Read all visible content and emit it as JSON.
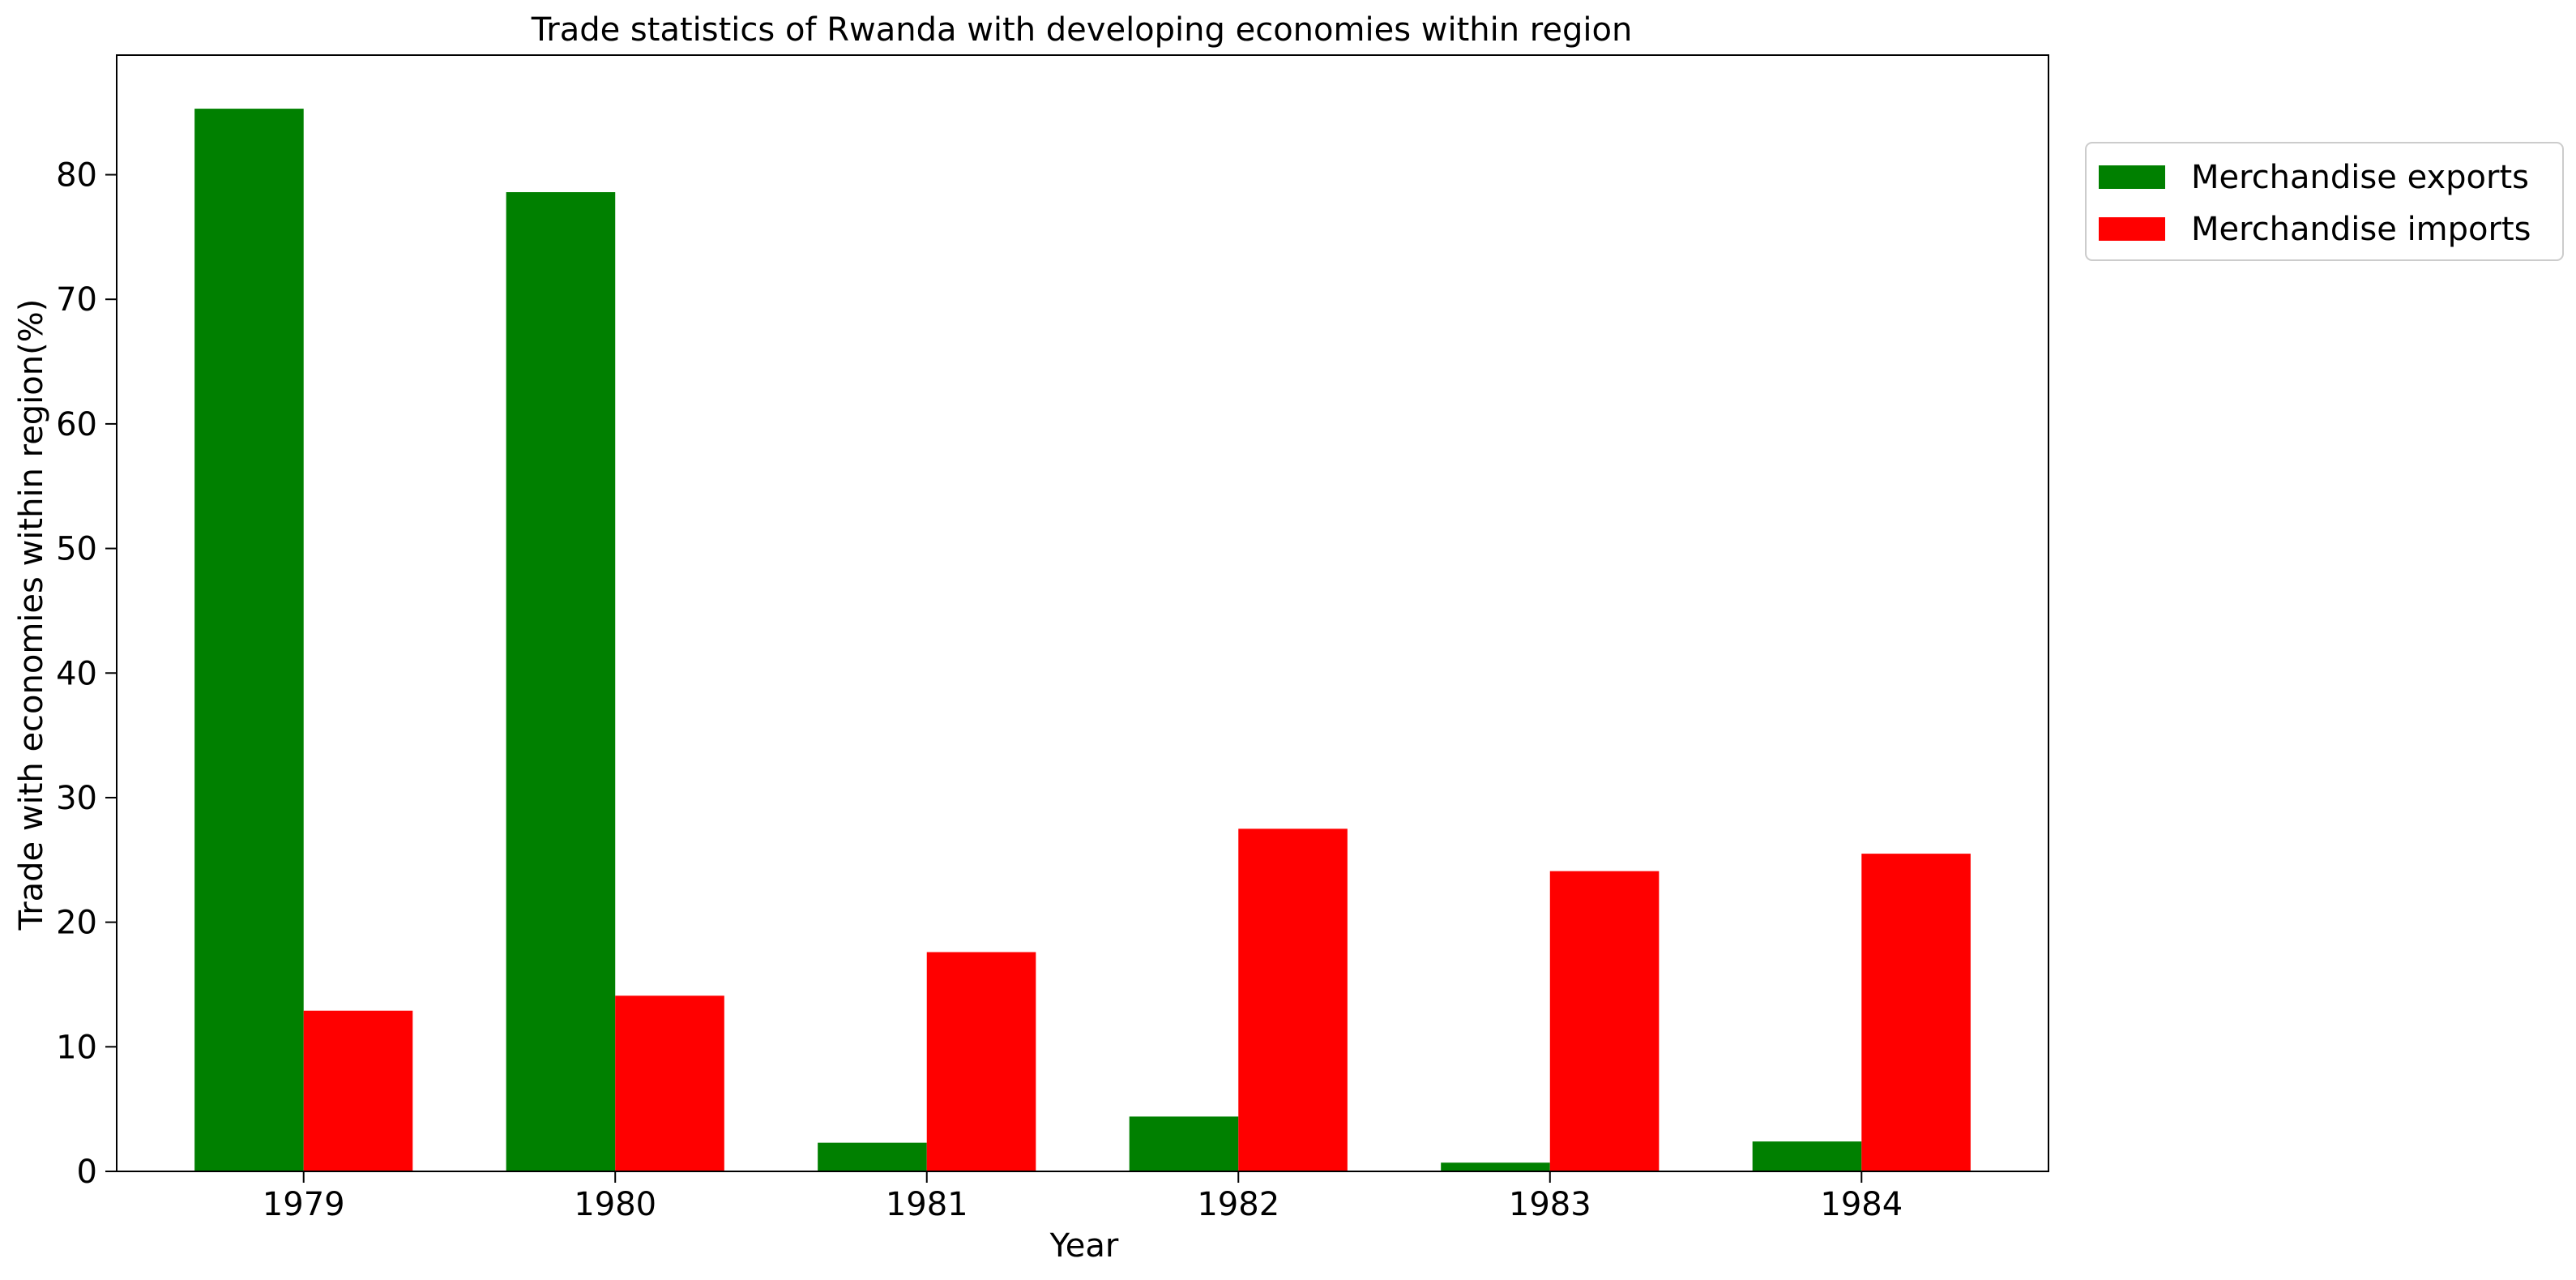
{
  "chart_data": {
    "type": "bar",
    "title": "Trade statistics of Rwanda with developing economies within region",
    "xlabel": "Year",
    "ylabel": "Trade with economies within region(%)",
    "categories": [
      "1979",
      "1980",
      "1981",
      "1982",
      "1983",
      "1984"
    ],
    "series": [
      {
        "name": "Merchandise exports",
        "color": "#008000",
        "values": [
          85.3,
          78.6,
          2.3,
          4.4,
          0.7,
          2.4
        ]
      },
      {
        "name": "Merchandise imports",
        "color": "#ff0000",
        "values": [
          12.9,
          14.1,
          17.6,
          27.5,
          24.1,
          25.5
        ]
      }
    ],
    "ylim": [
      0,
      89.6
    ],
    "yticks": [
      0,
      10,
      20,
      30,
      40,
      50,
      60,
      70,
      80
    ],
    "grid": false,
    "legend_position": "outside-top-right"
  }
}
